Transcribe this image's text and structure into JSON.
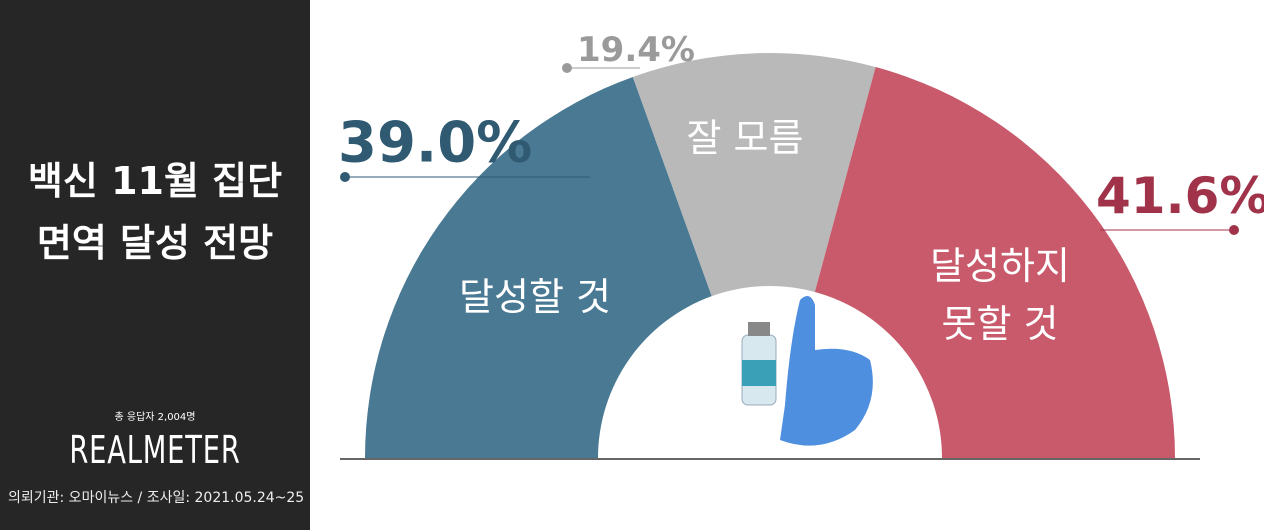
{
  "chart_data": {
    "type": "half-donut",
    "title": "백신 11월 집단면역 달성 전망",
    "respondents": "총 응답자 2,004명",
    "brand": "REALMETER",
    "footer": "의뢰기관: 오마이뉴스  /  조사일: 2021.05.24~25",
    "categories": [
      "달성할 것",
      "잘 모름",
      "달성하지 못할 것"
    ],
    "values": [
      39.0,
      19.4,
      41.6
    ],
    "value_labels": [
      "39.0%",
      "19.4%",
      "41.6%"
    ],
    "colors": [
      "#4a7a93",
      "#b9b9b9",
      "#c85a6b"
    ],
    "label_colors": [
      "#2f5a72",
      "#9a9a9a",
      "#a03349"
    ]
  }
}
